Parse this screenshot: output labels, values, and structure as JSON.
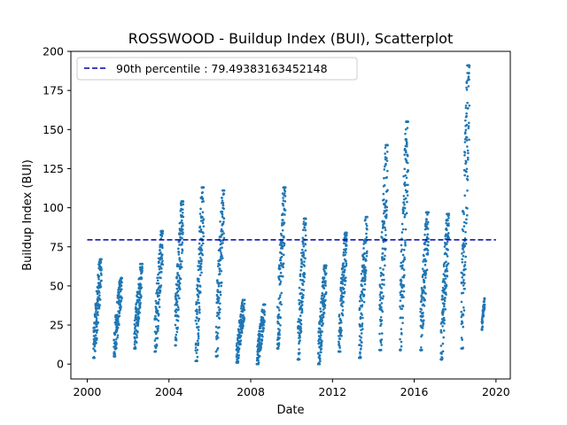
{
  "chart_data": {
    "type": "scatter",
    "title": "ROSSWOOD - Buildup Index (BUI), Scatterplot",
    "xlabel": "Date",
    "ylabel": "Buildup Index (BUI)",
    "xlim": [
      1999.2,
      2020.7
    ],
    "ylim": [
      -9.5,
      200
    ],
    "x_ticks": [
      "2000",
      "2004",
      "2008",
      "2012",
      "2016",
      "2020"
    ],
    "y_ticks": [
      "0",
      "25",
      "50",
      "75",
      "100",
      "125",
      "150",
      "175",
      "200"
    ],
    "grid": false,
    "legend_position": "top-left",
    "point_color": "#1f77b4",
    "reference_line": {
      "label": "90th percentile : 79.49383163452148",
      "value": 79.49383163452148,
      "x_range": [
        2000.0,
        2020.0
      ],
      "color": "#0000aa",
      "style": "dashed"
    },
    "series": [
      {
        "seasons": [
          {
            "year": 2000,
            "start": 2000.3,
            "end": 2000.7,
            "min": 4,
            "peak": 67
          },
          {
            "year": 2001,
            "start": 2001.3,
            "end": 2001.7,
            "min": 5,
            "peak": 55
          },
          {
            "year": 2002,
            "start": 2002.3,
            "end": 2002.7,
            "min": 10,
            "peak": 64
          },
          {
            "year": 2003,
            "start": 2003.3,
            "end": 2003.7,
            "min": 8,
            "peak": 85
          },
          {
            "year": 2004,
            "start": 2004.3,
            "end": 2004.7,
            "min": 12,
            "peak": 104
          },
          {
            "year": 2005,
            "start": 2005.3,
            "end": 2005.7,
            "min": 2,
            "peak": 113
          },
          {
            "year": 2006,
            "start": 2006.3,
            "end": 2006.7,
            "min": 5,
            "peak": 111
          },
          {
            "year": 2007,
            "start": 2007.3,
            "end": 2007.7,
            "min": 1,
            "peak": 41
          },
          {
            "year": 2008,
            "start": 2008.3,
            "end": 2008.7,
            "min": 0,
            "peak": 38
          },
          {
            "year": 2009,
            "start": 2009.3,
            "end": 2009.7,
            "min": 10,
            "peak": 113
          },
          {
            "year": 2010,
            "start": 2010.3,
            "end": 2010.7,
            "min": 3,
            "peak": 93
          },
          {
            "year": 2011,
            "start": 2011.3,
            "end": 2011.7,
            "min": 0,
            "peak": 63
          },
          {
            "year": 2012,
            "start": 2012.3,
            "end": 2012.7,
            "min": 8,
            "peak": 84
          },
          {
            "year": 2013,
            "start": 2013.3,
            "end": 2013.7,
            "min": 4,
            "peak": 94
          },
          {
            "year": 2014,
            "start": 2014.3,
            "end": 2014.7,
            "min": 9,
            "peak": 140
          },
          {
            "year": 2015,
            "start": 2015.3,
            "end": 2015.7,
            "min": 9,
            "peak": 155
          },
          {
            "year": 2016,
            "start": 2016.3,
            "end": 2016.7,
            "min": 9,
            "peak": 97
          },
          {
            "year": 2017,
            "start": 2017.3,
            "end": 2017.7,
            "min": 3,
            "peak": 96
          },
          {
            "year": 2018,
            "start": 2018.3,
            "end": 2018.7,
            "min": 10,
            "peak": 191
          },
          {
            "year": 2019,
            "start": 2019.3,
            "end": 2019.45,
            "min": 22,
            "peak": 42
          }
        ]
      }
    ]
  }
}
